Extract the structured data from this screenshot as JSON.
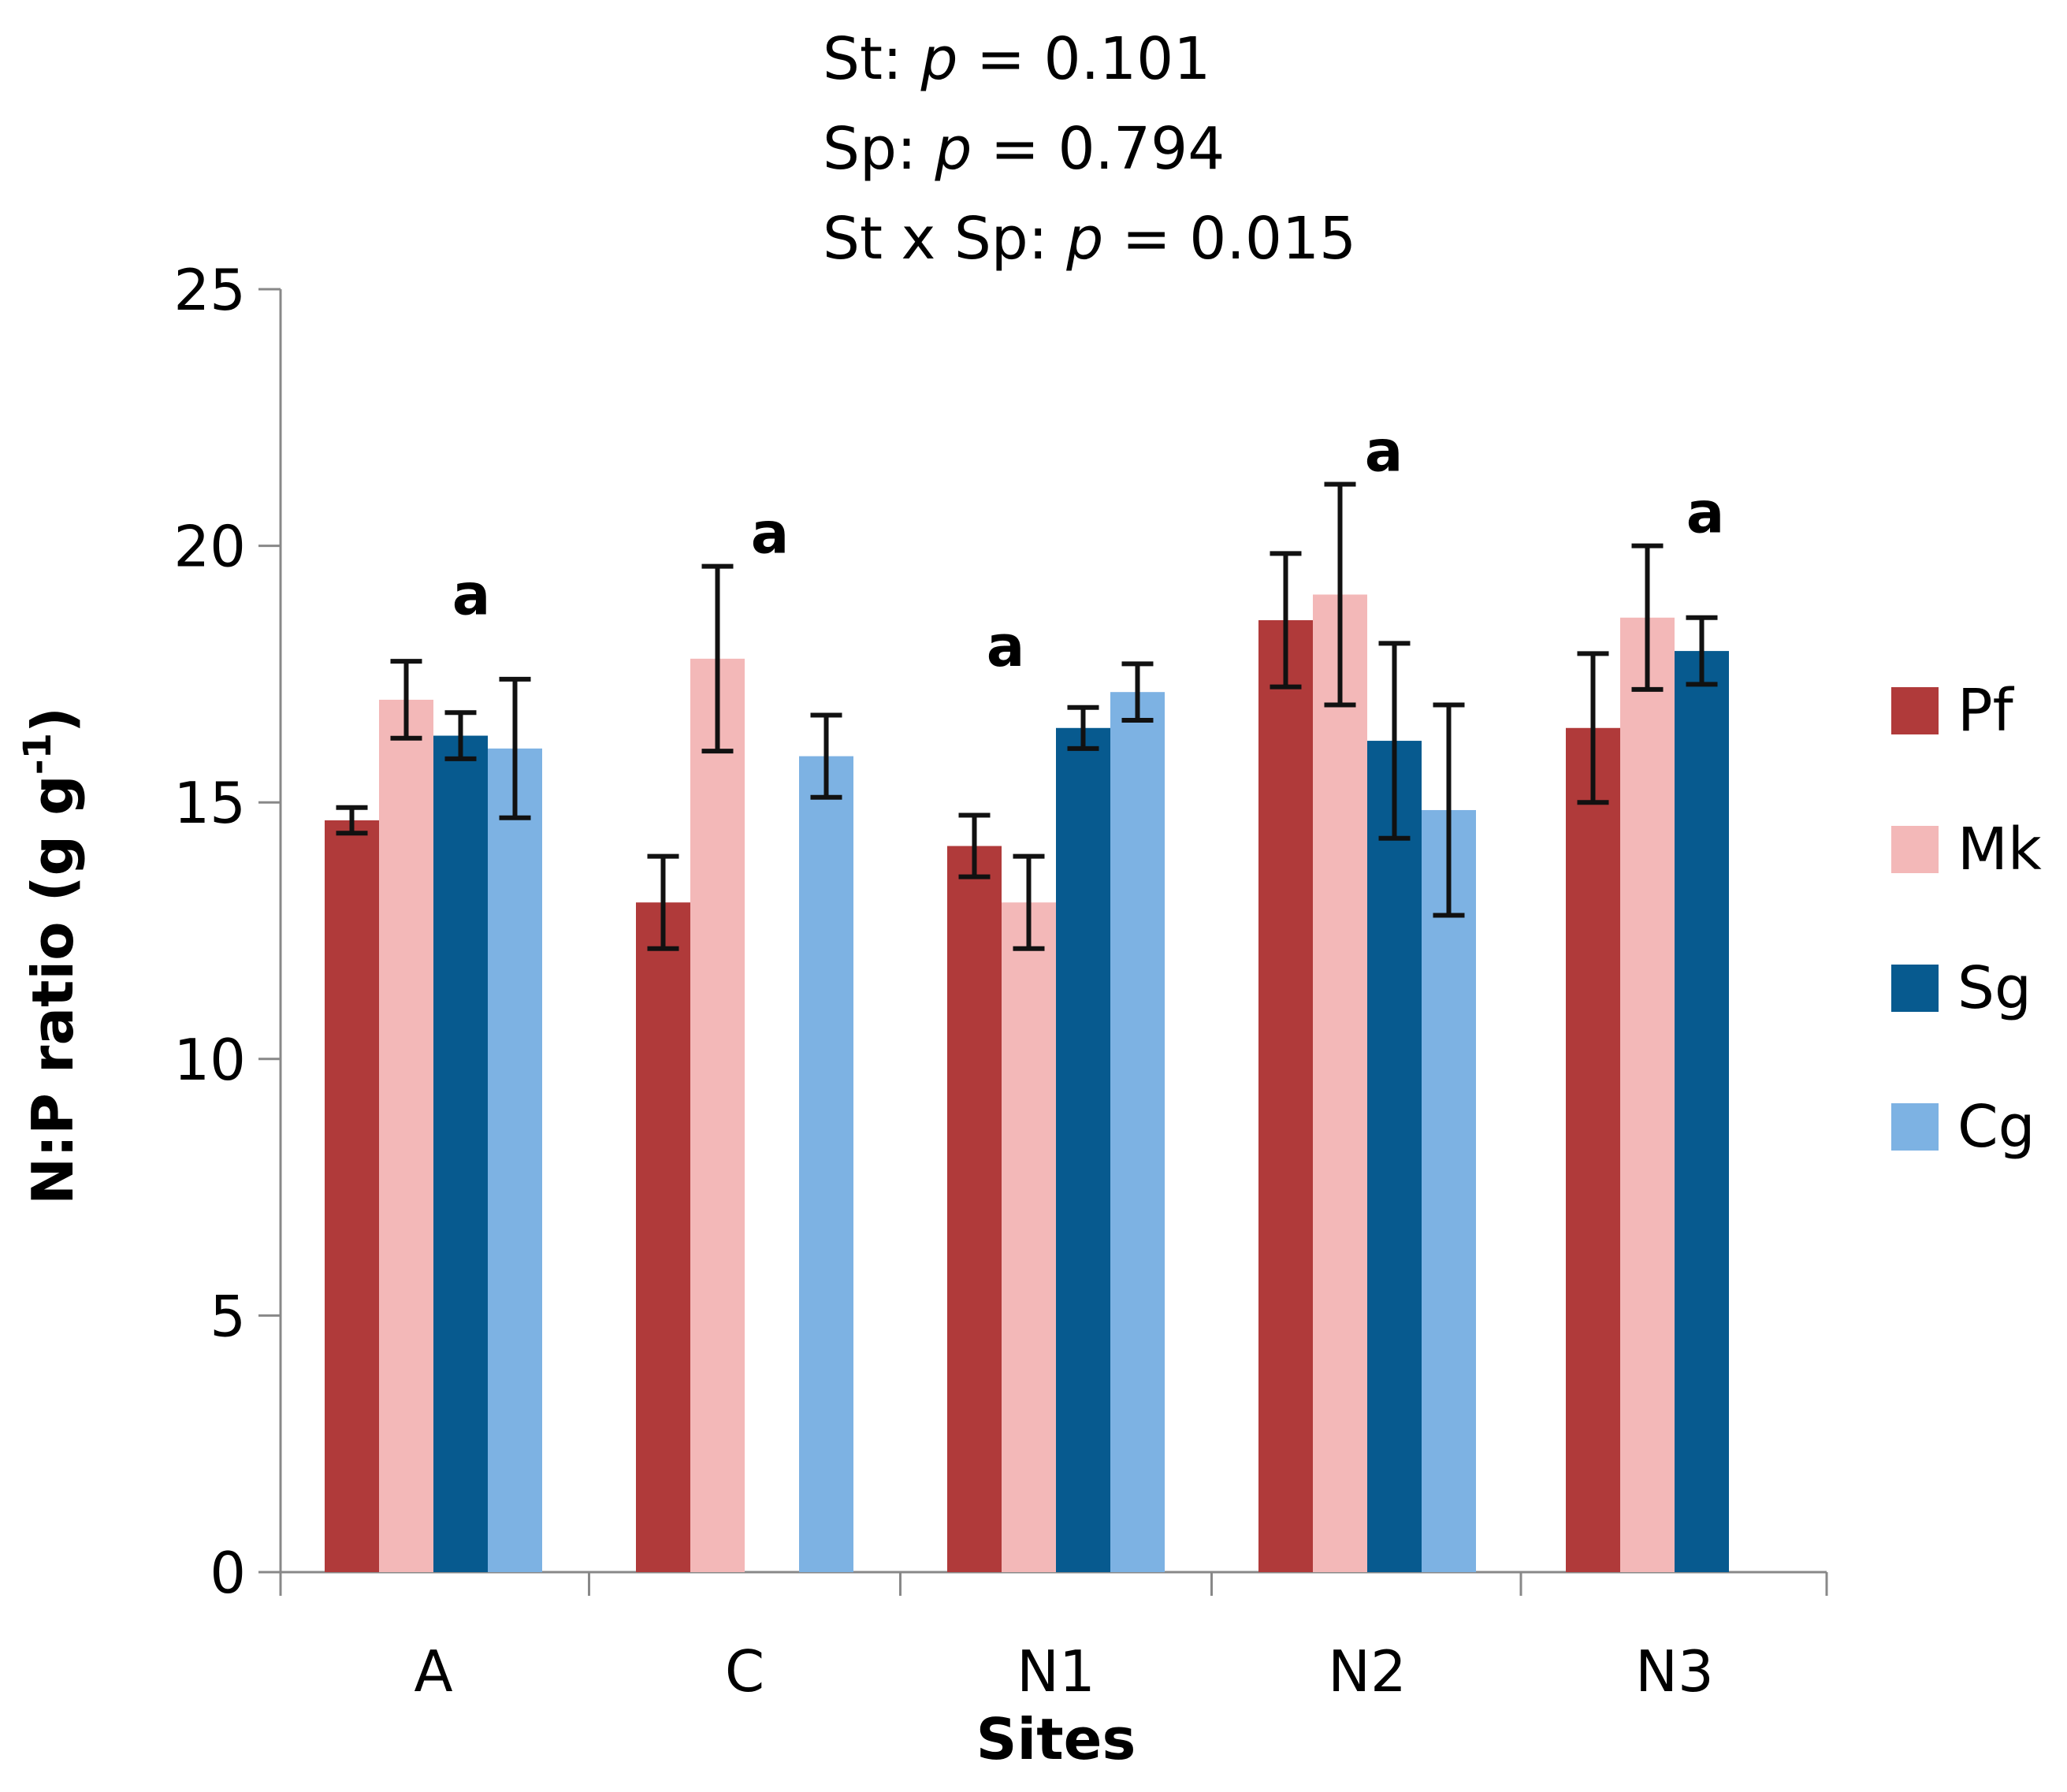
{
  "stats": {
    "line1": {
      "prefix": "St: ",
      "p": "p",
      "suffix": " = 0.101"
    },
    "line2": {
      "prefix": "Sp: ",
      "p": "p",
      "suffix": " = 0.794"
    },
    "line3": {
      "prefix": "St x Sp: ",
      "p": "p",
      "suffix": " = 0.015"
    }
  },
  "chart_data": {
    "type": "bar",
    "title": "",
    "xlabel": "Sites",
    "ylabel": "N:P ratio (g g",
    "ylabel_sup": "-1",
    "ylabel_close": ")",
    "ylim": [
      0,
      25
    ],
    "yticks": [
      0,
      5,
      10,
      15,
      20,
      25
    ],
    "categories": [
      "A",
      "C",
      "N1",
      "N2",
      "N3"
    ],
    "series": [
      {
        "name": "Pf",
        "color": "#B03A3A",
        "values": [
          14.65,
          13.05,
          14.15,
          18.55,
          16.45
        ],
        "errors": [
          0.25,
          0.9,
          0.6,
          1.3,
          1.45
        ]
      },
      {
        "name": "Mk",
        "color": "#F3B8B8",
        "values": [
          17.0,
          17.8,
          13.05,
          19.05,
          18.6
        ],
        "errors": [
          0.75,
          1.8,
          0.9,
          2.15,
          1.4
        ]
      },
      {
        "name": "Sg",
        "color": "#075A8F",
        "values": [
          16.3,
          null,
          16.45,
          16.2,
          17.95
        ],
        "errors": [
          0.45,
          null,
          0.4,
          1.9,
          0.65
        ]
      },
      {
        "name": "Cg",
        "color": "#7DB2E3",
        "values": [
          16.05,
          15.9,
          17.15,
          14.85,
          null
        ],
        "errors": [
          1.35,
          0.8,
          0.55,
          2.05,
          null
        ]
      }
    ],
    "annotations": [
      {
        "category": "A",
        "text": "a",
        "y": 19.0
      },
      {
        "category": "C",
        "text": "a",
        "y": 20.2
      },
      {
        "category": "N1",
        "text": "a",
        "y": 18.0
      },
      {
        "category": "N2",
        "text": "a",
        "y": 21.8
      },
      {
        "category": "N3",
        "text": "a",
        "y": 20.6
      }
    ],
    "legend_position": "right"
  }
}
